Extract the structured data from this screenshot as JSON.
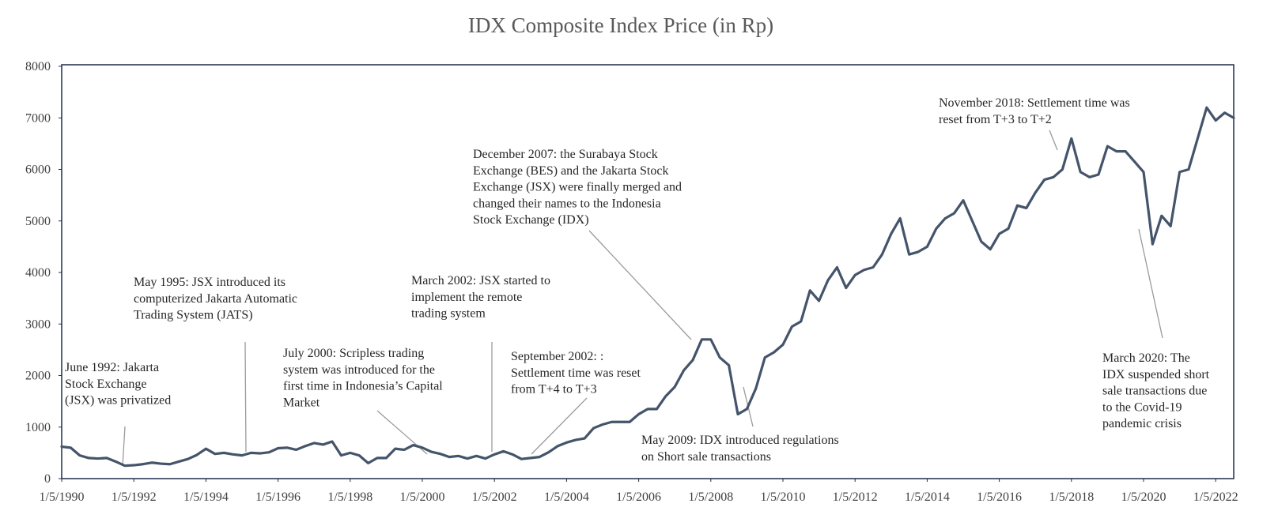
{
  "chart_data": {
    "type": "line",
    "title": "IDX Composite Index Price (in Rp)",
    "color": "#44546a",
    "x": [
      "1/5/1990",
      "4/5/1990",
      "7/5/1990",
      "10/5/1990",
      "1/5/1991",
      "4/5/1991",
      "7/5/1991",
      "10/5/1991",
      "1/5/1992",
      "4/5/1992",
      "7/5/1992",
      "10/5/1992",
      "1/5/1993",
      "4/5/1993",
      "7/5/1993",
      "10/5/1993",
      "1/5/1994",
      "4/5/1994",
      "7/5/1994",
      "10/5/1994",
      "1/5/1995",
      "4/5/1995",
      "7/5/1995",
      "10/5/1995",
      "1/5/1996",
      "4/5/1996",
      "7/5/1996",
      "10/5/1996",
      "1/5/1997",
      "4/5/1997",
      "7/5/1997",
      "10/5/1997",
      "1/5/1998",
      "4/5/1998",
      "7/5/1998",
      "10/5/1998",
      "1/5/1999",
      "4/5/1999",
      "7/5/1999",
      "10/5/1999",
      "1/5/2000",
      "4/5/2000",
      "7/5/2000",
      "10/5/2000",
      "1/5/2001",
      "4/5/2001",
      "7/5/2001",
      "10/5/2001",
      "1/5/2002",
      "4/5/2002",
      "7/5/2002",
      "10/5/2002",
      "1/5/2003",
      "4/5/2003",
      "7/5/2003",
      "10/5/2003",
      "1/5/2004",
      "4/5/2004",
      "7/5/2004",
      "10/5/2004",
      "1/5/2005",
      "4/5/2005",
      "7/5/2005",
      "10/5/2005",
      "1/5/2006",
      "4/5/2006",
      "7/5/2006",
      "10/5/2006",
      "1/5/2007",
      "4/5/2007",
      "7/5/2007",
      "10/5/2007",
      "1/5/2008",
      "4/5/2008",
      "7/5/2008",
      "10/5/2008",
      "1/5/2009",
      "4/5/2009",
      "7/5/2009",
      "10/5/2009",
      "1/5/2010",
      "4/5/2010",
      "7/5/2010",
      "10/5/2010",
      "1/5/2011",
      "4/5/2011",
      "7/5/2011",
      "10/5/2011",
      "1/5/2012",
      "4/5/2012",
      "7/5/2012",
      "10/5/2012",
      "1/5/2013",
      "4/5/2013",
      "7/5/2013",
      "10/5/2013",
      "1/5/2014",
      "4/5/2014",
      "7/5/2014",
      "10/5/2014",
      "1/5/2015",
      "4/5/2015",
      "7/5/2015",
      "10/5/2015",
      "1/5/2016",
      "4/5/2016",
      "7/5/2016",
      "10/5/2016",
      "1/5/2017",
      "4/5/2017",
      "7/5/2017",
      "10/5/2017",
      "1/5/2018",
      "4/5/2018",
      "7/5/2018",
      "10/5/2018",
      "1/5/2019",
      "4/5/2019",
      "7/5/2019",
      "10/5/2019",
      "1/5/2020",
      "4/5/2020",
      "7/5/2020",
      "10/5/2020",
      "1/5/2021",
      "4/5/2021",
      "7/5/2021",
      "10/5/2021",
      "1/5/2022",
      "4/5/2022",
      "7/5/2022"
    ],
    "values": [
      620,
      600,
      450,
      400,
      390,
      400,
      330,
      250,
      260,
      280,
      310,
      290,
      280,
      330,
      380,
      460,
      580,
      480,
      500,
      470,
      450,
      500,
      490,
      510,
      590,
      600,
      560,
      630,
      690,
      660,
      720,
      450,
      500,
      450,
      300,
      400,
      400,
      580,
      560,
      650,
      600,
      520,
      480,
      420,
      440,
      390,
      440,
      390,
      470,
      530,
      470,
      380,
      400,
      420,
      510,
      630,
      700,
      750,
      780,
      980,
      1050,
      1100,
      1100,
      1100,
      1250,
      1350,
      1350,
      1600,
      1780,
      2100,
      2300,
      2700,
      2700,
      2350,
      2200,
      1250,
      1350,
      1750,
      2350,
      2450,
      2600,
      2950,
      3050,
      3650,
      3450,
      3850,
      4100,
      3700,
      3950,
      4050,
      4100,
      4350,
      4750,
      5050,
      4350,
      4400,
      4500,
      4850,
      5050,
      5150,
      5400,
      5000,
      4600,
      4450,
      4750,
      4850,
      5300,
      5250,
      5550,
      5800,
      5850,
      6000,
      6600,
      5950,
      5850,
      5900,
      6450,
      6350,
      6350,
      6150,
      5950,
      4550,
      5100,
      4900,
      5950,
      6000,
      6600,
      7200,
      6950,
      7100,
      7000
    ],
    "xlim": [
      "1/5/1990",
      "7/5/2022"
    ],
    "xticks": [
      "1/5/1990",
      "1/5/1992",
      "1/5/1994",
      "1/5/1996",
      "1/5/1998",
      "1/5/2000",
      "1/5/2002",
      "1/5/2004",
      "1/5/2006",
      "1/5/2008",
      "1/5/2010",
      "1/5/2012",
      "1/5/2014",
      "1/5/2016",
      "1/5/2018",
      "1/5/2020",
      "1/5/2022"
    ],
    "ylim": [
      0,
      8000
    ],
    "yticks": [
      0,
      1000,
      2000,
      3000,
      4000,
      5000,
      6000,
      7000,
      8000
    ],
    "grid": false,
    "annotations": [
      {
        "lines": [
          "June 1992: Jakarta",
          "Stock Exchange",
          "(JSX) was privatized"
        ]
      },
      {
        "lines": [
          "May 1995: JSX introduced its",
          "computerized Jakarta Automatic",
          "Trading System (JATS)"
        ]
      },
      {
        "lines": [
          "July 2000: Scripless trading",
          "system was introduced for the",
          "first time in Indonesia’s Capital",
          "Market"
        ]
      },
      {
        "lines": [
          "March 2002: JSX started to",
          "implement  the remote",
          "trading system"
        ]
      },
      {
        "lines": [
          "September 2002: :",
          "Settlement time was reset",
          "from T+4 to T+3"
        ]
      },
      {
        "lines": [
          "December 2007: the Surabaya Stock",
          "Exchange (BES) and the Jakarta Stock",
          "Exchange (JSX) were finally  merged and",
          "changed their names to the Indonesia",
          "Stock Exchange (IDX)"
        ]
      },
      {
        "lines": [
          "May 2009: IDX introduced regulations",
          "on Short sale transactions"
        ]
      },
      {
        "lines": [
          "November 2018: Settlement time was",
          "reset from T+3 to T+2"
        ]
      },
      {
        "lines": [
          "March 2020: The",
          "IDX suspended short",
          "sale transactions due",
          "to the Covid-19",
          "pandemic crisis"
        ]
      }
    ]
  }
}
